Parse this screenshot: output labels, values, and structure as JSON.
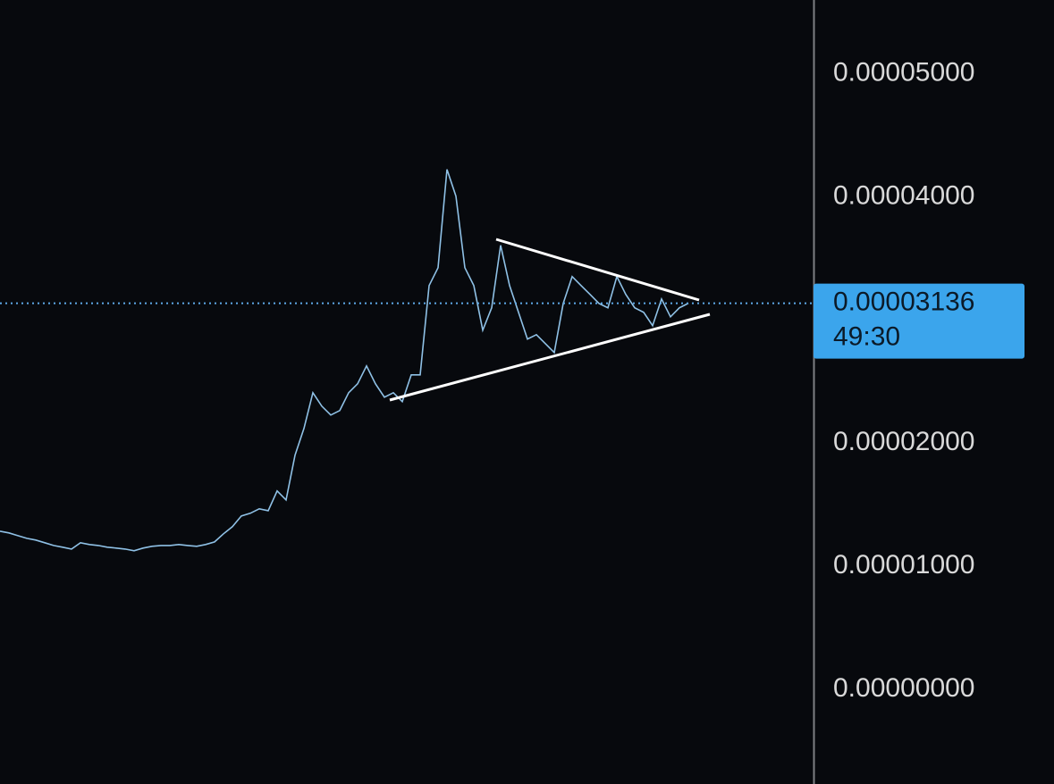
{
  "chart_data": {
    "type": "line",
    "series": [
      {
        "color": "#8fc1e6",
        "values": [
          1.284e-05,
          1.27e-05,
          1.248e-05,
          1.226e-05,
          1.212e-05,
          1.19e-05,
          1.168e-05,
          1.154e-05,
          1.139e-05,
          1.19e-05,
          1.176e-05,
          1.168e-05,
          1.154e-05,
          1.147e-05,
          1.139e-05,
          1.125e-05,
          1.147e-05,
          1.161e-05,
          1.168e-05,
          1.168e-05,
          1.176e-05,
          1.168e-05,
          1.161e-05,
          1.176e-05,
          1.197e-05,
          1.263e-05,
          1.321e-05,
          1.408e-05,
          1.43e-05,
          1.466e-05,
          1.451e-05,
          1.611e-05,
          1.538e-05,
          1.901e-05,
          2.119e-05,
          2.409e-05,
          2.3e-05,
          2.228e-05,
          2.264e-05,
          2.409e-05,
          2.482e-05,
          2.627e-05,
          2.482e-05,
          2.373e-05,
          2.409e-05,
          2.337e-05,
          2.554e-05,
          2.554e-05,
          3.28e-05,
          3.425e-05,
          4.224e-05,
          4.006e-05,
          3.425e-05,
          3.28e-05,
          2.917e-05,
          3.099e-05,
          3.607e-05,
          3.28e-05,
          3.062e-05,
          2.845e-05,
          2.881e-05,
          2.808e-05,
          2.736e-05,
          3.135e-05,
          3.353e-05,
          3.28e-05,
          3.208e-05,
          3.135e-05,
          3.099e-05,
          3.353e-05,
          3.208e-05,
          3.099e-05,
          3.062e-05,
          2.954e-05,
          3.171e-05,
          3.026e-05,
          3.099e-05,
          3.136e-05
        ]
      }
    ],
    "ylim": [
      -7.7e-06,
      5.6e-05
    ],
    "yticks": [
      {
        "value": 0,
        "label": "0.00000000"
      },
      {
        "value": 1e-05,
        "label": "0.00001000"
      },
      {
        "value": 2e-05,
        "label": "0.00002000"
      },
      {
        "value": 4e-05,
        "label": "0.00004000"
      },
      {
        "value": 5e-05,
        "label": "0.00005000"
      }
    ],
    "current_price": {
      "value": 3.136e-05,
      "label": "0.00003136"
    },
    "countdown": "49:30",
    "grid": false
  }
}
